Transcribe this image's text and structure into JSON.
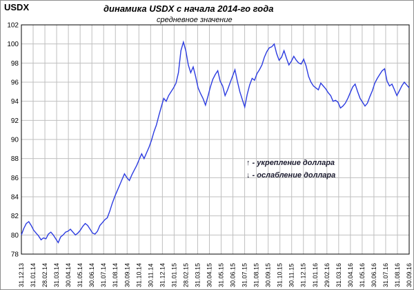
{
  "header": {
    "corner_label": "USDX",
    "title": "динамика  USDX с начала 2014-го года",
    "subtitle": "средневное значение"
  },
  "legend_notes": [
    {
      "arrow": "↑",
      "text": " - укрепление доллара"
    },
    {
      "arrow": "↓",
      "text": " - ослабление доллара"
    }
  ],
  "colors": {
    "line": "#2b3be0",
    "axis": "#000000",
    "grid": "#bfbfbf",
    "background": "#ffffff"
  },
  "chart_data": {
    "type": "line",
    "title": "динамика  USDX с начала 2014-го года",
    "subtitle": "средневное значение",
    "ylabel": "USDX",
    "ylim": [
      78,
      102
    ],
    "yticks": [
      78,
      80,
      82,
      84,
      86,
      88,
      90,
      92,
      94,
      96,
      98,
      100,
      102
    ],
    "grid": true,
    "x_tick_labels": [
      "31.12.13",
      "31.01.14",
      "28.02.14",
      "31.03.14",
      "30.04.14",
      "31.05.14",
      "30.06.14",
      "31.07.14",
      "31.08.14",
      "30.09.14",
      "31.10.14",
      "30.11.14",
      "31.12.14",
      "31.01.15",
      "28.02.15",
      "31.03.15",
      "30.04.15",
      "31.05.15",
      "30.06.15",
      "31.07.15",
      "31.08.15",
      "30.09.15",
      "31.10.15",
      "30.11.15",
      "31.12.15",
      "31.01.16",
      "29.02.16",
      "31.03.16",
      "30.04.16",
      "31.05.16",
      "30.06.16",
      "31.07.16",
      "31.08.16",
      "30.09.16"
    ],
    "series": [
      {
        "values": [
          80.0,
          80.7,
          81.2,
          81.4,
          81.0,
          80.5,
          80.2,
          79.9,
          79.5,
          79.7,
          79.6,
          80.1,
          80.3,
          80.0,
          79.6,
          79.2,
          79.8,
          80.0,
          80.3,
          80.4,
          80.6,
          80.3,
          80.0,
          80.2,
          80.5,
          80.9,
          81.2,
          81.0,
          80.6,
          80.2,
          80.1,
          80.4,
          81.0,
          81.3,
          81.6,
          81.8,
          82.5,
          83.3,
          84.0,
          84.6,
          85.2,
          85.8,
          86.4,
          86.0,
          85.7,
          86.3,
          86.8,
          87.3,
          87.9,
          88.5,
          88.0,
          88.6,
          89.2,
          89.9,
          90.8,
          91.5,
          92.5,
          93.4,
          94.3,
          94.0,
          94.6,
          95.0,
          95.4,
          95.9,
          97.0,
          99.3,
          100.2,
          99.3,
          97.8,
          97.0,
          97.6,
          96.6,
          95.4,
          94.8,
          94.3,
          93.6,
          94.5,
          95.5,
          96.3,
          96.8,
          97.2,
          96.1,
          95.6,
          94.6,
          95.2,
          95.9,
          96.6,
          97.3,
          96.1,
          95.0,
          94.2,
          93.4,
          94.7,
          95.7,
          96.4,
          96.2,
          96.9,
          97.3,
          97.8,
          98.6,
          99.2,
          99.6,
          99.7,
          100.0,
          99.0,
          98.3,
          98.6,
          99.3,
          98.5,
          97.8,
          98.2,
          98.7,
          98.3,
          98.0,
          97.9,
          98.4,
          97.7,
          96.6,
          96.0,
          95.6,
          95.4,
          95.2,
          95.9,
          95.6,
          95.3,
          94.9,
          94.6,
          94.0,
          94.1,
          93.9,
          93.3,
          93.5,
          93.8,
          94.3,
          94.9,
          95.5,
          95.8,
          95.0,
          94.3,
          93.9,
          93.5,
          93.8,
          94.5,
          95.1,
          95.9,
          96.4,
          96.8,
          97.2,
          97.4,
          96.1,
          95.6,
          95.8,
          95.2,
          94.6,
          95.1,
          95.6,
          96.0,
          95.7,
          95.4
        ]
      }
    ]
  }
}
